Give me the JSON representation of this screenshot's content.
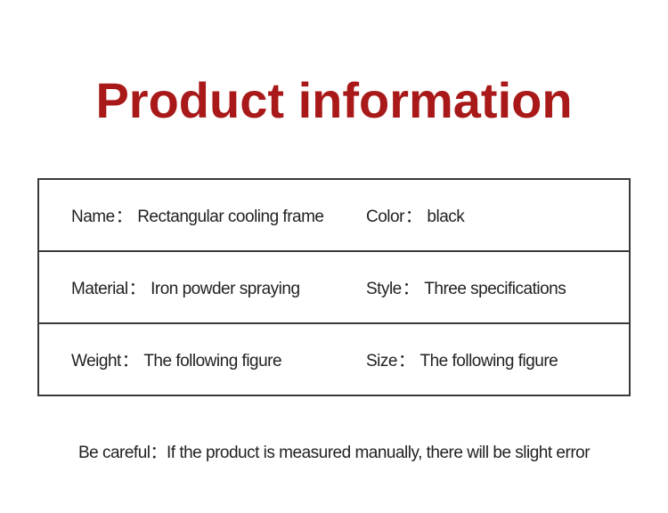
{
  "title": "Product information",
  "colors": {
    "title_color": "#a91919",
    "text_color": "#222222",
    "border_color": "#3a3a3a",
    "background": "#ffffff"
  },
  "typography": {
    "title_fontsize": 56,
    "title_weight": "bold",
    "body_fontsize": 19
  },
  "table": {
    "type": "table",
    "rows": [
      {
        "left": {
          "label": "Name",
          "colon": "：",
          "value": "Rectangular cooling frame"
        },
        "right": {
          "label": "Color",
          "colon": "：",
          "value": "black"
        }
      },
      {
        "left": {
          "label": "Material",
          "colon": "：",
          "value": "Iron powder spraying"
        },
        "right": {
          "label": "Style",
          "colon": "：",
          "value": "Three specifications"
        }
      },
      {
        "left": {
          "label": "Weight",
          "colon": "：",
          "value": "The following figure"
        },
        "right": {
          "label": "Size",
          "colon": "：",
          "value": "The following figure"
        }
      }
    ]
  },
  "footnote": {
    "label": "Be careful",
    "colon": "：",
    "text": "If the product is measured manually, there will be slight error"
  }
}
